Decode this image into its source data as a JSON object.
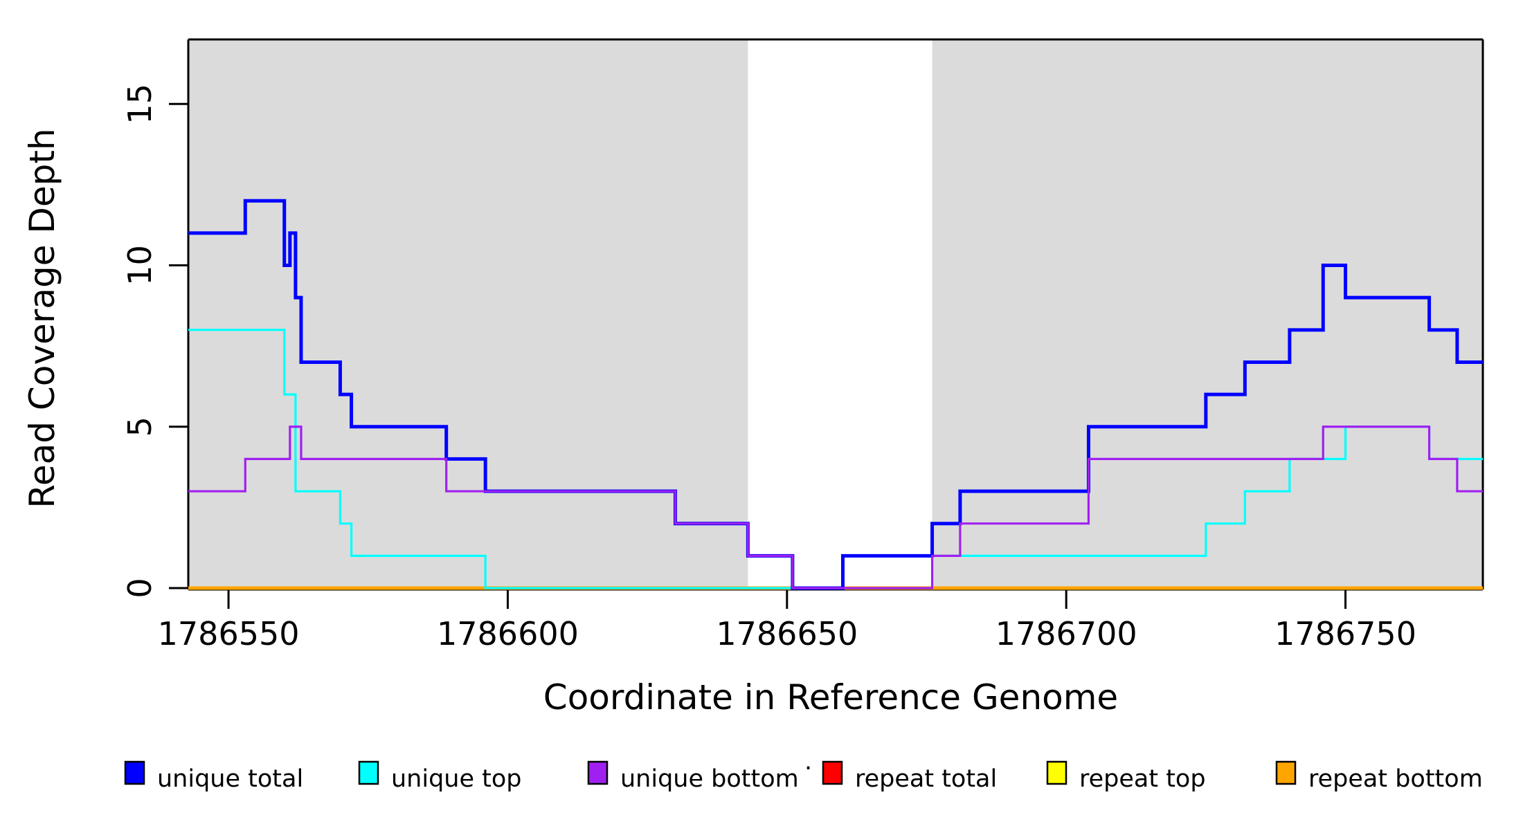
{
  "axes": {
    "x": {
      "label": "Coordinate in Reference Genome",
      "ticks": [
        1786550,
        1786600,
        1786650,
        1786700,
        1786750
      ],
      "tick_labels": [
        "1786550",
        "1786600",
        "1786650",
        "1786700",
        "1786750"
      ]
    },
    "y": {
      "label": "Read Coverage Depth",
      "ticks": [
        0,
        5,
        10,
        15
      ],
      "tick_labels": [
        "0",
        "5",
        "10",
        "15"
      ]
    }
  },
  "chart_data": {
    "type": "line",
    "subtype": "step",
    "title": "",
    "xlabel": "Coordinate in Reference Genome",
    "ylabel": "Read Coverage Depth",
    "xlim": [
      1786542.8,
      1786774.6
    ],
    "ylim": [
      0,
      17
    ],
    "grid": false,
    "legend_position": "bottom",
    "background_color": "#ffffff",
    "shaded_region_color": "#DBDBDB",
    "box_color": "#000000",
    "shaded_regions": [
      {
        "start": 1786542.8,
        "end": 1786643,
        "meaning": "covered segment"
      },
      {
        "start": 1786676,
        "end": 1786774.6,
        "meaning": "covered segment"
      }
    ],
    "gap_region": {
      "start": 1786643,
      "end": 1786676
    },
    "draw_order": [
      3,
      4,
      5,
      1,
      0,
      2
    ],
    "series": [
      {
        "name": "unique total",
        "color": "#0000FF",
        "line_width": 5,
        "steps": [
          [
            1786542.8,
            11
          ],
          [
            1786553,
            12
          ],
          [
            1786560,
            10
          ],
          [
            1786561,
            11
          ],
          [
            1786562,
            9
          ],
          [
            1786563,
            7
          ],
          [
            1786570,
            6
          ],
          [
            1786572,
            5
          ],
          [
            1786589,
            4
          ],
          [
            1786596,
            3
          ],
          [
            1786630,
            2
          ],
          [
            1786643,
            1
          ],
          [
            1786651,
            0
          ],
          [
            1786660,
            1
          ],
          [
            1786676,
            2
          ],
          [
            1786681,
            3
          ],
          [
            1786704,
            5
          ],
          [
            1786725,
            6
          ],
          [
            1786732,
            7
          ],
          [
            1786740,
            8
          ],
          [
            1786746,
            10
          ],
          [
            1786750,
            9
          ],
          [
            1786765,
            8
          ],
          [
            1786770,
            7
          ]
        ]
      },
      {
        "name": "unique top",
        "color": "#00FFFF",
        "line_width": 3.2,
        "steps": [
          [
            1786542.8,
            8
          ],
          [
            1786560,
            6
          ],
          [
            1786562,
            3
          ],
          [
            1786570,
            2
          ],
          [
            1786572,
            1
          ],
          [
            1786596,
            0
          ],
          [
            1786660,
            1
          ],
          [
            1786725,
            2
          ],
          [
            1786732,
            3
          ],
          [
            1786740,
            4
          ],
          [
            1786750,
            5
          ],
          [
            1786765,
            4
          ]
        ]
      },
      {
        "name": "unique bottom",
        "color": "#A020F0",
        "line_width": 3.2,
        "steps": [
          [
            1786542.8,
            3
          ],
          [
            1786553,
            4
          ],
          [
            1786561,
            5
          ],
          [
            1786563,
            4
          ],
          [
            1786589,
            3
          ],
          [
            1786630,
            2
          ],
          [
            1786643,
            1
          ],
          [
            1786651,
            0
          ],
          [
            1786676,
            1
          ],
          [
            1786681,
            2
          ],
          [
            1786704,
            4
          ],
          [
            1786746,
            5
          ],
          [
            1786765,
            4
          ],
          [
            1786770,
            3
          ]
        ]
      },
      {
        "name": "repeat total",
        "color": "#FF0000",
        "line_width": 3,
        "steps": [
          [
            1786542.8,
            0
          ]
        ]
      },
      {
        "name": "repeat top",
        "color": "#FFFF00",
        "line_width": 3,
        "steps": [
          [
            1786542.8,
            0
          ]
        ]
      },
      {
        "name": "repeat bottom",
        "color": "#FFA500",
        "line_width": 5,
        "steps": [
          [
            1786542.8,
            0
          ]
        ]
      }
    ]
  },
  "legend": {
    "stray_mark": "·",
    "items": [
      {
        "label": "unique total",
        "color": "#0000FF"
      },
      {
        "label": "unique top",
        "color": "#00FFFF"
      },
      {
        "label": "unique bottom",
        "color": "#A020F0"
      },
      {
        "label": "repeat total",
        "color": "#FF0000"
      },
      {
        "label": "repeat top",
        "color": "#FFFF00"
      },
      {
        "label": "repeat bottom",
        "color": "#FFA500"
      }
    ]
  }
}
